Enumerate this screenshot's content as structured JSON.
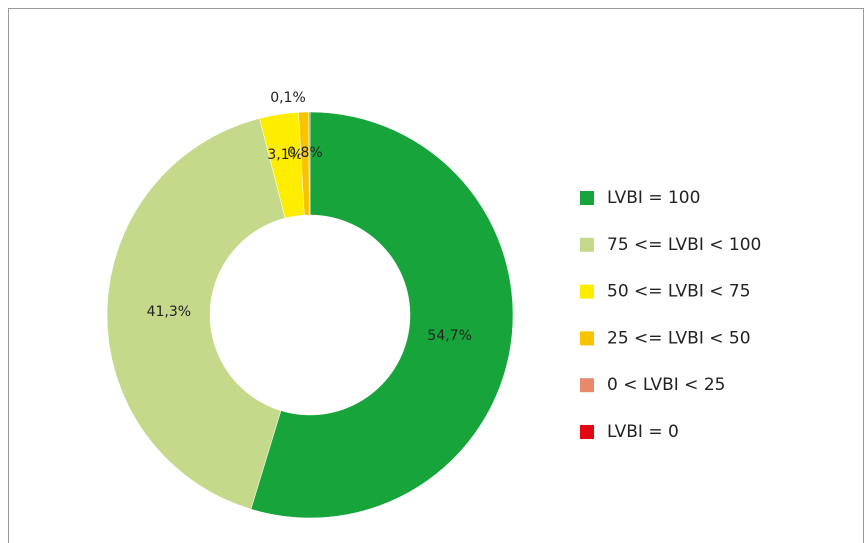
{
  "chart_data": {
    "type": "donut",
    "categories": [
      "LVBI = 100",
      "75 <= LVBI < 100",
      "50 <= LVBI < 75",
      "25 <= LVBI < 50",
      "0 < LVBI < 25",
      "LVBI = 0"
    ],
    "values": [
      54.7,
      41.3,
      3.1,
      0.8,
      0.1,
      0
    ],
    "value_labels": [
      "54,7%",
      "41,3%",
      "3,1%",
      "0,8%",
      "0,1%",
      null
    ],
    "colors": [
      "#17a43b",
      "#c5d98b",
      "#ffed00",
      "#f8c300",
      "#e8896a",
      "#e30613"
    ],
    "legend": "right"
  }
}
